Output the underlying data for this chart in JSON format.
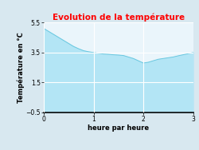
{
  "title": "Evolution de la température",
  "title_color": "#ff0000",
  "xlabel": "heure par heure",
  "ylabel": "Température en °C",
  "xlim": [
    0,
    3
  ],
  "ylim": [
    -0.5,
    5.5
  ],
  "xticks": [
    0,
    1,
    2,
    3
  ],
  "yticks": [
    -0.5,
    1.5,
    3.5,
    5.5
  ],
  "x": [
    0,
    0.1,
    0.2,
    0.3,
    0.4,
    0.5,
    0.6,
    0.7,
    0.8,
    0.9,
    1.0,
    1.1,
    1.2,
    1.3,
    1.4,
    1.5,
    1.6,
    1.7,
    1.8,
    1.9,
    2.0,
    2.1,
    2.2,
    2.3,
    2.4,
    2.5,
    2.6,
    2.7,
    2.8,
    2.9,
    3.0
  ],
  "y": [
    5.1,
    4.9,
    4.7,
    4.5,
    4.3,
    4.1,
    3.9,
    3.75,
    3.62,
    3.55,
    3.5,
    3.45,
    3.4,
    3.38,
    3.35,
    3.33,
    3.3,
    3.2,
    3.1,
    2.95,
    2.8,
    2.85,
    2.95,
    3.05,
    3.1,
    3.15,
    3.2,
    3.28,
    3.35,
    3.42,
    3.5
  ],
  "fill_color": "#b3e5f5",
  "line_color": "#6ac8e0",
  "fill_alpha": 1.0,
  "background_color": "#d8e8f0",
  "plot_background": "#eaf5fb",
  "grid_color": "#ffffff",
  "title_fontsize": 7.5,
  "label_fontsize": 6.0,
  "tick_fontsize": 5.5
}
